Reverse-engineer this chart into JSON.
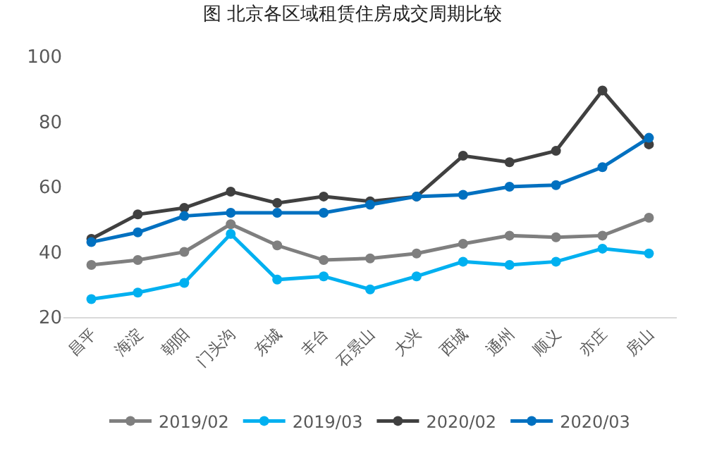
{
  "chart_data": {
    "type": "line",
    "title": "图 北京各区域租赁住房成交周期比较",
    "categories": [
      "昌平",
      "海淀",
      "朝阳",
      "门头沟",
      "东城",
      "丰台",
      "石景山",
      "大兴",
      "西城",
      "通州",
      "顺义",
      "亦庄",
      "房山"
    ],
    "series": [
      {
        "name": "2019/02",
        "color": "#7f7f7f",
        "values": [
          36,
          37.5,
          40,
          48.5,
          42,
          37.5,
          38,
          39.5,
          42.5,
          45,
          44.5,
          45,
          50.5
        ]
      },
      {
        "name": "2019/03",
        "color": "#00b0f0",
        "values": [
          25.5,
          27.5,
          30.5,
          45.5,
          31.5,
          32.5,
          28.5,
          32.5,
          37,
          36,
          37,
          41,
          39.5
        ]
      },
      {
        "name": "2020/02",
        "color": "#404040",
        "values": [
          44,
          51.5,
          53.5,
          58.5,
          55,
          57,
          55.5,
          57,
          69.5,
          67.5,
          71,
          89.5,
          73
        ]
      },
      {
        "name": "2020/03",
        "color": "#0070c0",
        "values": [
          43,
          46,
          51,
          52,
          52,
          52,
          54.5,
          57,
          57.5,
          60,
          60.5,
          66,
          75
        ]
      }
    ],
    "ylim": [
      20,
      100
    ],
    "yticks": [
      20,
      40,
      60,
      80,
      100
    ],
    "legend": "bottom",
    "marker": "circle",
    "line_style": "solid"
  }
}
